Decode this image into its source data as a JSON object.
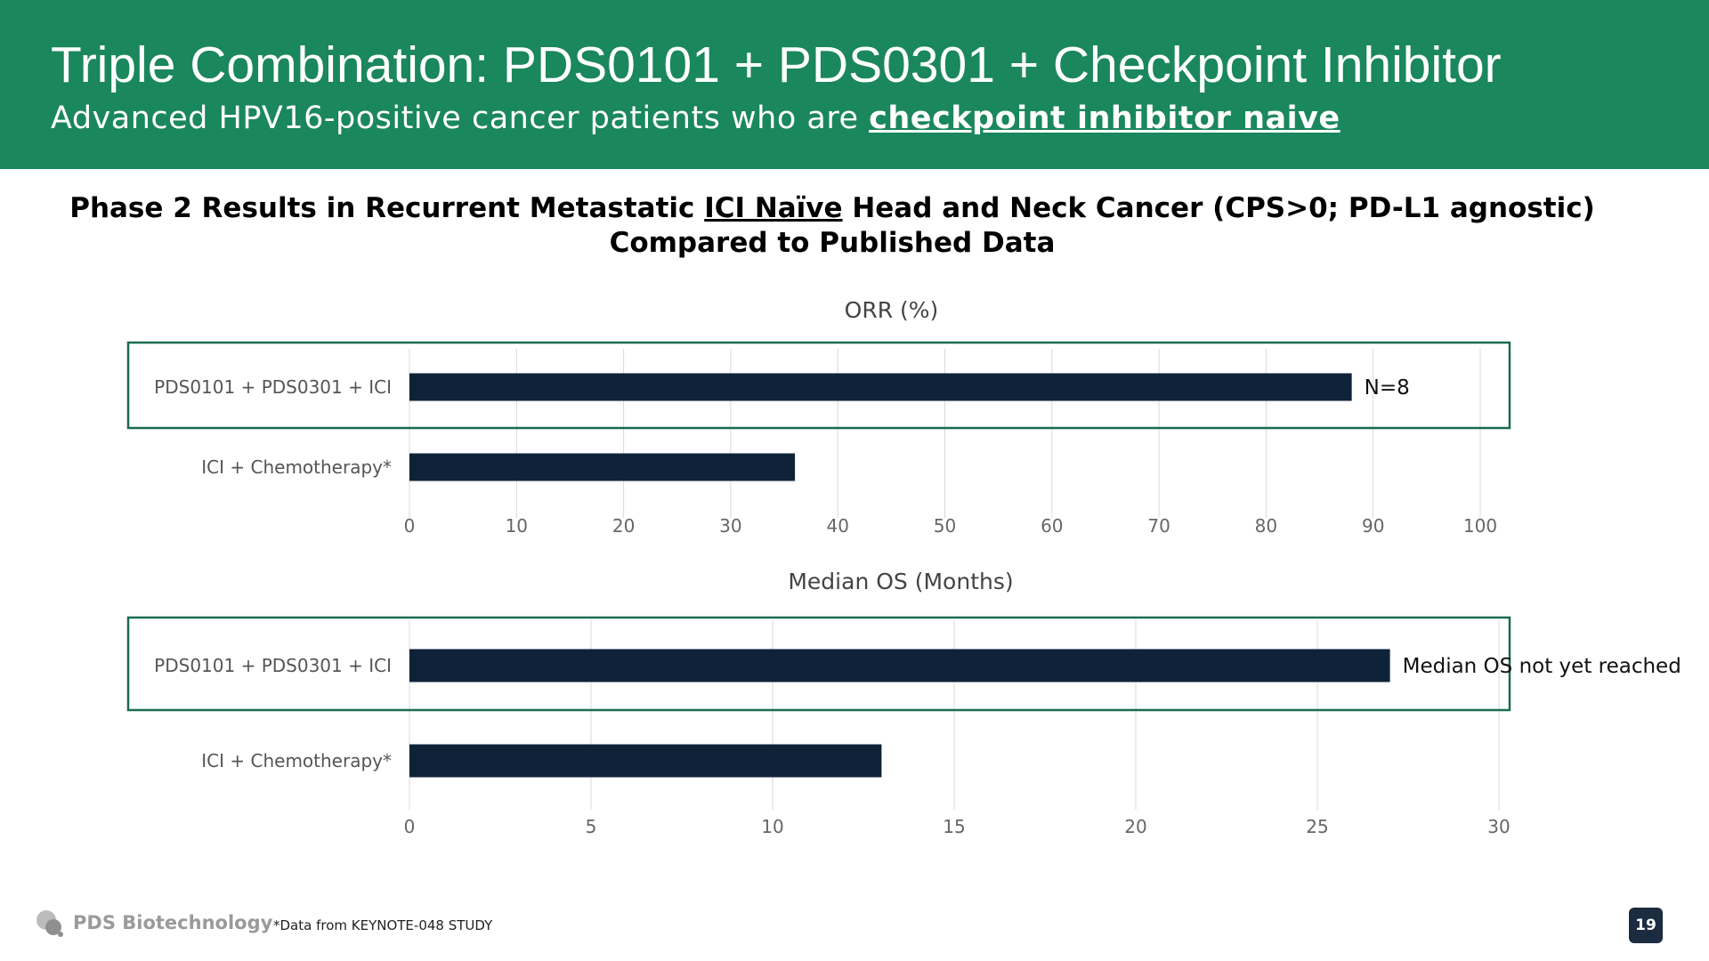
{
  "header": {
    "title": "Triple Combination: PDS0101 + PDS0301 + Checkpoint Inhibitor",
    "subtitle_pre": "Advanced HPV16-positive cancer patients who are ",
    "subtitle_highlight": "checkpoint inhibitor naive"
  },
  "heading": {
    "line1_pre": "Phase 2 Results in Recurrent Metastatic ",
    "line1_ul": "ICI Naïve",
    "line1_post": " Head and Neck Cancer (CPS>0; PD-L1 agnostic)",
    "line2": "Compared to Published Data"
  },
  "colors": {
    "header_bg": "#1a875d",
    "bar": "#0e2238",
    "box": "#1a6b4e",
    "grid": "#d9d9d9"
  },
  "chart_data": [
    {
      "type": "bar",
      "orientation": "horizontal",
      "title": "ORR (%)",
      "categories": [
        "PDS0101 + PDS0301 + ICI",
        "ICI + Chemotherapy*"
      ],
      "values": [
        88,
        36
      ],
      "xlim": [
        0,
        100
      ],
      "ticks": [
        0,
        10,
        20,
        30,
        40,
        50,
        60,
        70,
        80,
        90,
        100
      ],
      "annotation": "N=8",
      "highlight_category": "PDS0101 + PDS0301 + ICI"
    },
    {
      "type": "bar",
      "orientation": "horizontal",
      "title": "Median OS (Months)",
      "categories": [
        "PDS0101 + PDS0301 + ICI",
        "ICI + Chemotherapy*"
      ],
      "values": [
        27,
        13
      ],
      "xlim": [
        0,
        30
      ],
      "ticks": [
        0,
        5,
        10,
        15,
        20,
        25,
        30
      ],
      "annotation": "Median OS not yet reached",
      "highlight_category": "PDS0101 + PDS0301 + ICI"
    }
  ],
  "footer": {
    "logo_text": "PDS Biotechnology",
    "footnote": "*Data from KEYNOTE-048 STUDY",
    "page_number": "19"
  }
}
